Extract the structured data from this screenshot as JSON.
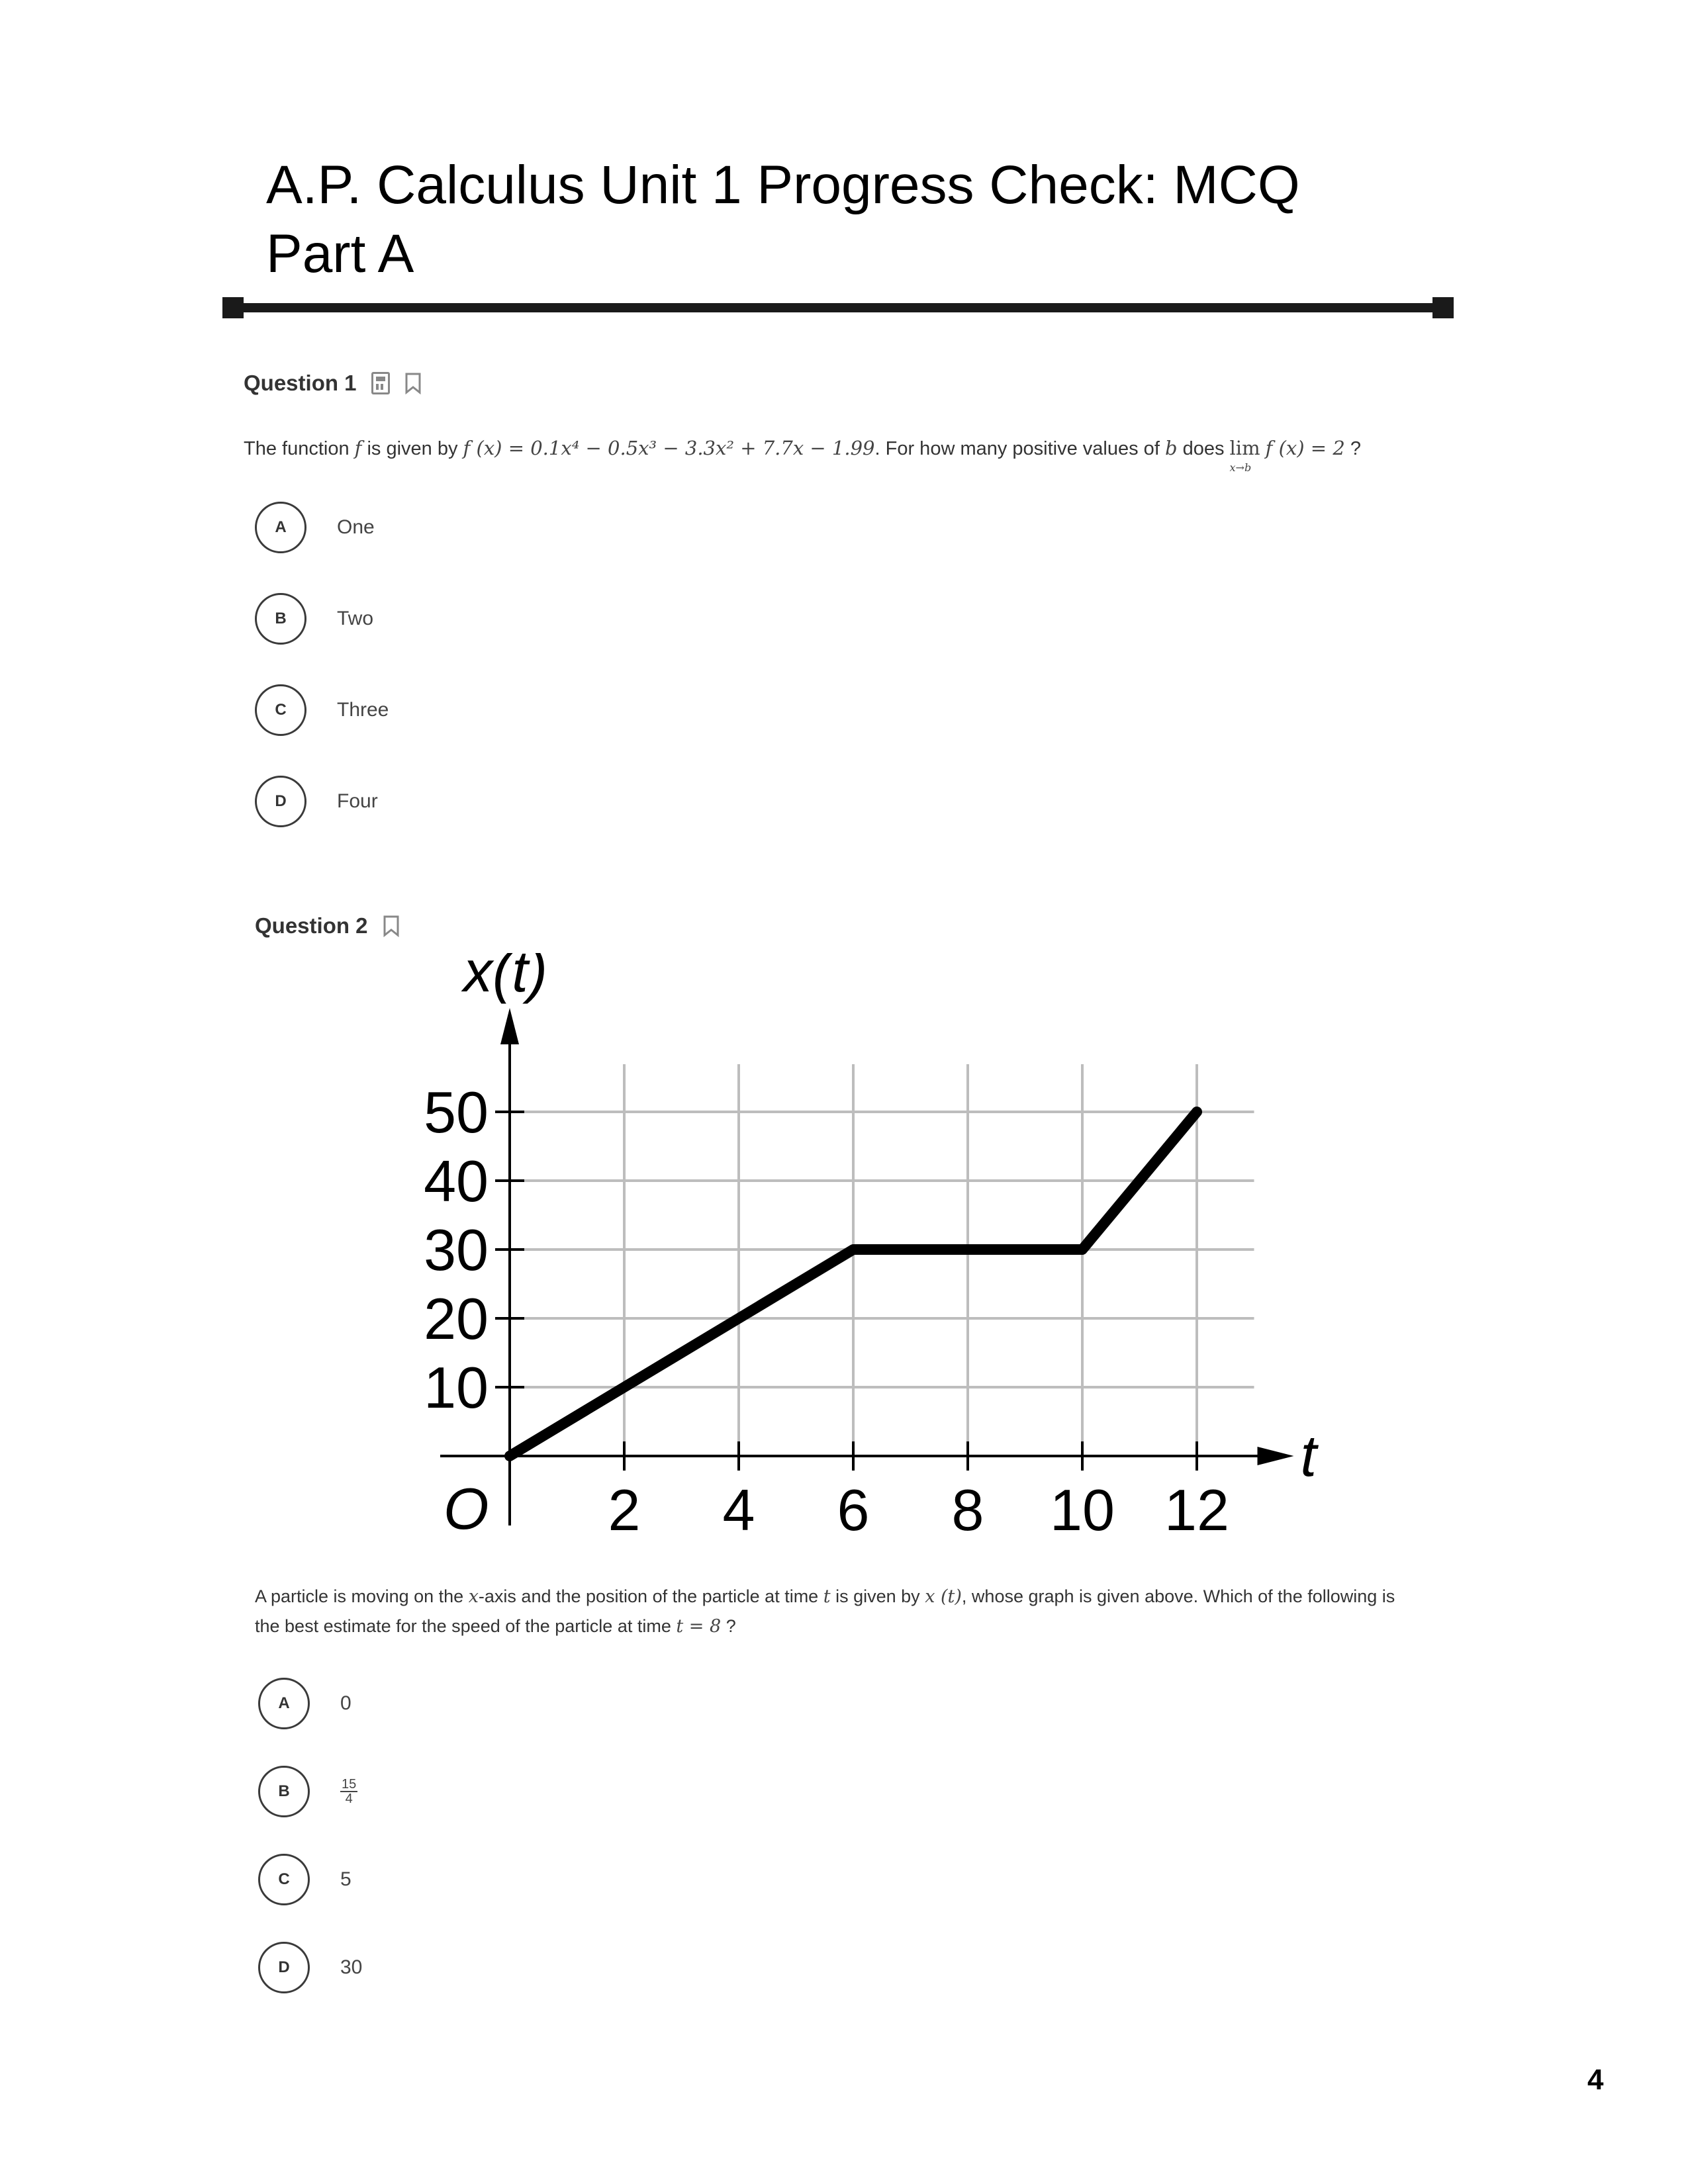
{
  "title": {
    "line1": "A.P. Calculus Unit 1 Progress Check: MCQ",
    "line2": "Part A"
  },
  "icons": {
    "calculator": "calculator-icon",
    "bookmark": "bookmark-icon"
  },
  "question1": {
    "label": "Question 1",
    "stem_prefix": "The function",
    "stem_f": "f",
    "stem_mid": "is given by",
    "formula": "f (x) = 0.1x⁴ − 0.5x³ − 3.3x² + 7.7x − 1.99",
    "stem_suffix": ". For how many positive values of",
    "stem_b": "b",
    "stem_does": "does",
    "limit_word": "lim",
    "limit_sub": "x→b",
    "limit_expr": "f (x) = 2",
    "stem_end": "?",
    "choices": [
      {
        "letter": "A",
        "text": "One"
      },
      {
        "letter": "B",
        "text": "Two"
      },
      {
        "letter": "C",
        "text": "Three"
      },
      {
        "letter": "D",
        "text": "Four"
      }
    ]
  },
  "question2": {
    "label": "Question 2",
    "stem_line1_a": "A particle is moving on the",
    "stem_x": "x",
    "stem_line1_b": "-axis and the position of the particle at time",
    "stem_t": "t",
    "stem_line1_c": "is given by",
    "stem_xt": "x (t)",
    "stem_line1_d": ", whose graph is given above. Which of the following is",
    "stem_line2_a": "the best estimate for the speed of the particle at time",
    "stem_t8": "t = 8",
    "stem_line2_b": "?",
    "choices": [
      {
        "letter": "A",
        "text": "0"
      },
      {
        "letter": "B",
        "num": "15",
        "den": "4"
      },
      {
        "letter": "C",
        "text": "5"
      },
      {
        "letter": "D",
        "text": "30"
      }
    ]
  },
  "chart_data": {
    "type": "line",
    "ylabel": "x(t)",
    "xlabel": "t",
    "origin_label": "O",
    "x_ticks": [
      2,
      4,
      6,
      8,
      10,
      12
    ],
    "y_ticks": [
      10,
      20,
      30,
      40,
      50
    ],
    "xlim": [
      0,
      13
    ],
    "ylim": [
      0,
      55
    ],
    "grid": true,
    "series": [
      {
        "x": [
          0,
          6,
          10,
          12
        ],
        "y": [
          0,
          30,
          30,
          50
        ]
      }
    ]
  },
  "page_number": "4"
}
